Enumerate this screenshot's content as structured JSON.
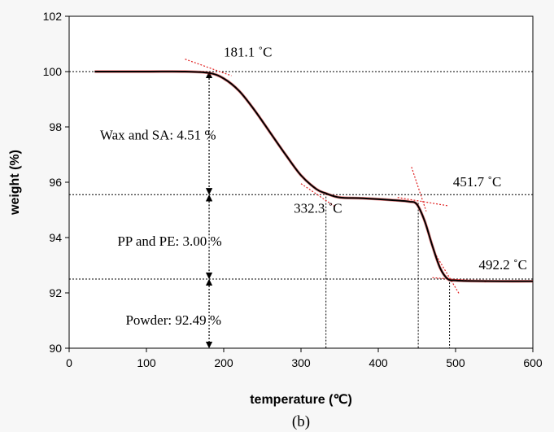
{
  "chart_data": {
    "type": "line",
    "title": "",
    "xlabel": "temperature (℃)",
    "ylabel": "weight (%)",
    "xlim": [
      0,
      600
    ],
    "ylim": [
      90,
      102
    ],
    "xticks": [
      "0",
      "100",
      "200",
      "300",
      "400",
      "500",
      "600"
    ],
    "yticks": [
      "90",
      "92",
      "94",
      "96",
      "98",
      "100",
      "102"
    ],
    "grid": false,
    "caption": "(b)",
    "series": [
      {
        "color": "#000000",
        "x": [
          33,
          100,
          150,
          181,
          200,
          220,
          240,
          260,
          280,
          300,
          320,
          332,
          350,
          380,
          420,
          440,
          450,
          460,
          470,
          480,
          490,
          500,
          520,
          560,
          600
        ],
        "y": [
          100.0,
          100.0,
          100.0,
          99.95,
          99.75,
          99.3,
          98.6,
          97.8,
          97.0,
          96.25,
          95.75,
          95.6,
          95.45,
          95.42,
          95.35,
          95.3,
          95.2,
          94.6,
          93.7,
          92.9,
          92.5,
          92.45,
          92.43,
          92.42,
          92.42
        ]
      }
    ],
    "annotations": {
      "onsets": [
        {
          "label": "181.1 ˚C",
          "x": 181.1,
          "y": 99.95
        },
        {
          "label": "332.3 ˚C",
          "x": 332.3,
          "y": 95.6
        },
        {
          "label": "451.7 ˚C",
          "x": 451.7,
          "y": 95.25
        },
        {
          "label": "492.2 ˚C",
          "x": 492.2,
          "y": 92.5
        }
      ],
      "levels": [
        100.0,
        95.55,
        92.5
      ],
      "steps": [
        {
          "label": "Wax and SA: 4.51 %"
        },
        {
          "label": "PP and PE: 3.00 %"
        },
        {
          "label": "Powder: 92.49 %"
        }
      ]
    }
  }
}
